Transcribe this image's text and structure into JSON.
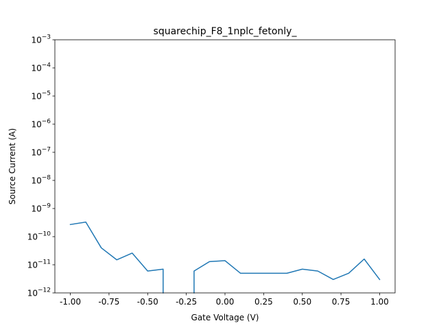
{
  "chart_data": {
    "type": "line",
    "title": "squarechip_F8_1nplc_fetonly_",
    "xlabel": "Gate Voltage (V)",
    "ylabel": "Source Current (A)",
    "xlim": [
      -1.1,
      1.1
    ],
    "ylim": [
      1e-12,
      0.001
    ],
    "yscale": "log",
    "grid": false,
    "x_ticks": [
      "-1.00",
      "-0.75",
      "-0.50",
      "-0.25",
      "0.00",
      "0.25",
      "0.50",
      "0.75",
      "1.00"
    ],
    "x_tick_values": [
      -1.0,
      -0.75,
      -0.5,
      -0.25,
      0.0,
      0.25,
      0.5,
      0.75,
      1.0
    ],
    "y_tick_exponents": [
      -12,
      -11,
      -10,
      -9,
      -8,
      -7,
      -6,
      -5,
      -4,
      -3
    ],
    "series": [
      {
        "color": "#1f77b4",
        "segments": [
          {
            "x": [
              -1.0,
              -0.9,
              -0.8,
              -0.7,
              -0.6,
              -0.5,
              -0.4,
              -0.4
            ],
            "y": [
              2.7e-10,
              3.3e-10,
              4e-11,
              1.5e-11,
              2.6e-11,
              6e-12,
              7e-12,
              1e-12
            ]
          },
          {
            "x": [
              -0.2,
              -0.2,
              -0.1,
              0.0,
              0.1,
              0.2,
              0.3,
              0.4,
              0.5,
              0.6,
              0.7,
              0.8,
              0.9,
              1.0
            ],
            "y": [
              1e-12,
              6e-12,
              1.3e-11,
              1.4e-11,
              5e-12,
              5e-12,
              5e-12,
              5e-12,
              7e-12,
              6e-12,
              3e-12,
              5e-12,
              1.6e-11,
              3e-12
            ]
          }
        ]
      }
    ]
  }
}
